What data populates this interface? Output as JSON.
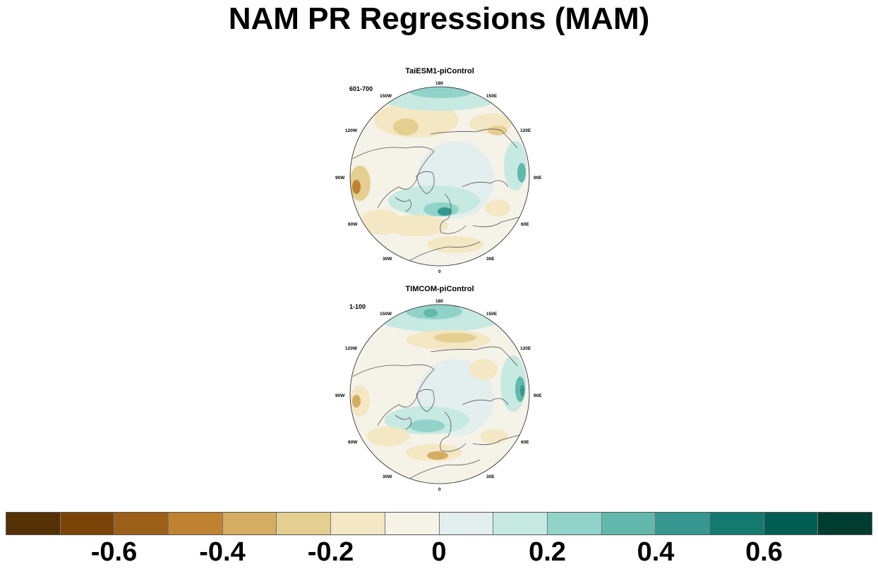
{
  "title": "NAM PR Regressions (MAM)",
  "panels": [
    {
      "model": "TaiESM1-piControl",
      "period": "601-700",
      "lon_labels": [
        "180",
        "150E",
        "120E",
        "90E",
        "60E",
        "30E",
        "0",
        "30W",
        "60W",
        "90W",
        "120W",
        "150W"
      ]
    },
    {
      "model": "TIMCOM-piControl",
      "period": "1-100",
      "lon_labels": [
        "180",
        "150E",
        "120E",
        "90E",
        "60E",
        "30E",
        "0",
        "30W",
        "60W",
        "90W",
        "120W",
        "150W"
      ]
    }
  ],
  "colorbar": {
    "colors": [
      "#543005",
      "#7a4409",
      "#9c5f18",
      "#be8230",
      "#d4ac62",
      "#e5cf90",
      "#f3e7c4",
      "#f5f2e8",
      "#e3efee",
      "#c6e9e2",
      "#91d3c8",
      "#62b8ad",
      "#35978f",
      "#147a70",
      "#015e53",
      "#003d30"
    ],
    "tick_labels": [
      "-0.6",
      "-0.4",
      "-0.2",
      "0",
      "0.2",
      "0.4",
      "0.6"
    ],
    "tick_values": [
      -0.6,
      -0.4,
      -0.2,
      0,
      0.2,
      0.4,
      0.6
    ],
    "range": [
      -0.8,
      0.8
    ]
  }
}
